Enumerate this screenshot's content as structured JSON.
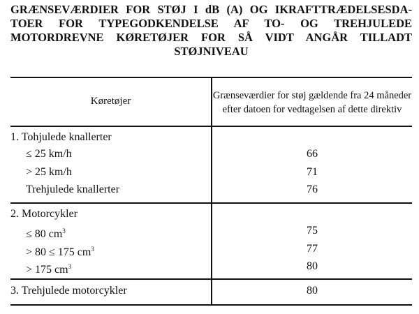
{
  "title_lines": [
    "GRÆNSEVÆRDIER FOR STØJ I dB (A) OG IKRAFTTRÆDELSESDA-",
    "TOER FOR TYPEGODKENDELSE AF TO- OG TREHJULEDE",
    "MOTORDREVNE KØRETØJER FOR SÅ VIDT ANGÅR TILLADT",
    "STØJNIVEAU"
  ],
  "table": {
    "header": {
      "col1": "Køretøjer",
      "col2": "Grænseværdier for støj gældende fra 24 måneder efter datoen for vedtagelsen af dette direktiv"
    },
    "groups": [
      {
        "label": "1. Tohjulede knallerter",
        "value": "",
        "rows": [
          {
            "label": "≤ 25 km/h",
            "sup": "",
            "value": "66"
          },
          {
            "label": "> 25 km/h",
            "sup": "",
            "value": "71"
          },
          {
            "label": "Trehjulede knallerter",
            "sup": "",
            "value": "76"
          }
        ]
      },
      {
        "label": "2. Motorcykler",
        "value": "",
        "rows": [
          {
            "label": "≤ 80 cm",
            "sup": "3",
            "value": "75"
          },
          {
            "label": "> 80 ≤ 175 cm",
            "sup": "3",
            "value": "77"
          },
          {
            "label": "> 175 cm",
            "sup": "3",
            "value": "80"
          }
        ]
      },
      {
        "label": "3. Trehjulede motorcykler",
        "value": "80",
        "rows": []
      }
    ]
  }
}
